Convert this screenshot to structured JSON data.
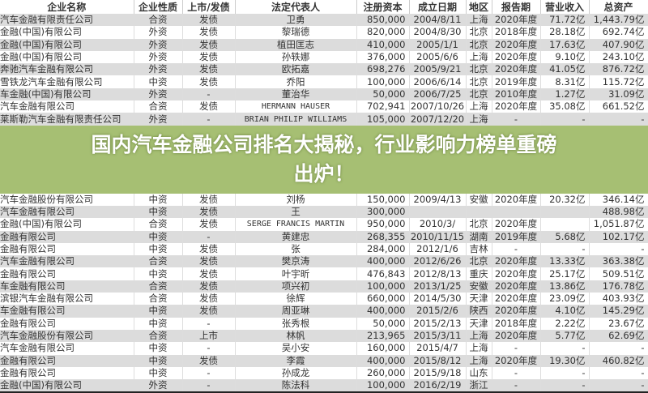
{
  "headers": [
    "企业名称",
    "企业性质",
    "上市/发债",
    "法定代表人",
    "注册资本",
    "成立日期",
    "地区",
    "报告期",
    "营业收入",
    "总资产"
  ],
  "rows": [
    [
      "汽车金融有限责任公司",
      "合资",
      "发债",
      "卫勇",
      "850,000",
      "2004/8/11",
      "上海",
      "2020年度",
      "71.72亿",
      "1,443.79亿"
    ],
    [
      "金融(中国)有限公司",
      "外资",
      "发债",
      "黎瑞德",
      "820,000",
      "2004/8/30",
      "北京",
      "2018年度",
      "28.18亿",
      "692.74亿"
    ],
    [
      "金融(中国)有限公司",
      "外资",
      "发债",
      "植田匡志",
      "410,000",
      "2005/1/1",
      "北京",
      "2020年度",
      "17.63亿",
      "407.90亿"
    ],
    [
      "金融(中国)有限公司",
      "外资",
      "发债",
      "孙轶娜",
      "376,000",
      "2005/6/6",
      "上海",
      "2020年度",
      "9.10亿",
      "243.10亿"
    ],
    [
      "奔驰汽车金融有限公司",
      "外资",
      "发债",
      "欧拓嘉",
      "698,276",
      "2005/9/21",
      "北京",
      "2020年度",
      "41.05亿",
      "876.72亿"
    ],
    [
      "雪铁龙汽车金融有限公司",
      "中资",
      "发债",
      "乔阳",
      "100,000",
      "2006/6/14",
      "北京",
      "2019年度",
      "8.31亿",
      "115.72亿"
    ],
    [
      "车金融(中国)有限公司",
      "外资",
      "-",
      "董治华",
      "50,000",
      "2006/7/25",
      "北京",
      "2010年度",
      "1.27亿",
      "31.09亿"
    ],
    [
      "汽车金融有限公司",
      "合资",
      "发债",
      "HERMANN HAUSER",
      "702,941",
      "2007/10/26",
      "上海",
      "2020年度",
      "35.08亿",
      "661.52亿"
    ],
    [
      "莱斯勒汽车金融有限责任公司",
      "外资",
      "-",
      "BRIAN PHILIP WILLIAMS",
      "105,000",
      "2007/12/20",
      "上海",
      "-",
      "-",
      "-"
    ],
    [
      "汽车金融股份有限公司",
      "中资",
      "发债",
      "刘杨",
      "150,000",
      "2009/4/13",
      "安徽",
      "2020年度",
      "20.32亿",
      "346.14亿"
    ],
    [
      "汽车金融有限公司",
      "中资",
      "发债",
      "王",
      "300,000",
      "",
      "",
      "",
      "",
      "488.98亿"
    ],
    [
      "金融(中国)有限公司",
      "合资",
      "发债",
      "SERGE FRANCIS MARTIN",
      "950,000",
      "2010/3/",
      "北京",
      "2020年度",
      "",
      "1,051.87亿"
    ],
    [
      "金融有限公司",
      "中资",
      "-",
      "黄建忠",
      "268,355",
      "2010/11/15",
      "湖南",
      "2019年度",
      "5.68亿",
      "102.17亿"
    ],
    [
      "金融有限公司",
      "中资",
      "发债",
      "张",
      "284,000",
      "2012/1/6",
      "吉林",
      "-",
      "-",
      "-"
    ],
    [
      "汽车金融有限公司",
      "合资",
      "发债",
      "樊京涛",
      "400,000",
      "2012/6/26",
      "北京",
      "2020年度",
      "13.33亿",
      "363.38亿"
    ],
    [
      "金融有限公司",
      "中资",
      "发债",
      "叶宇昕",
      "476,843",
      "2012/8/13",
      "重庆",
      "2020年度",
      "25.17亿",
      "509.51亿"
    ],
    [
      "车金融有限公司",
      "合资",
      "发债",
      "项兴初",
      "100,000",
      "2013/1/25",
      "安徽",
      "2020年度",
      "13.86亿",
      "176.78亿"
    ],
    [
      "滨银汽车金融有限公司",
      "合资",
      "发债",
      "徐辉",
      "660,000",
      "2014/5/30",
      "天津",
      "2020年度",
      "23.09亿",
      "403.93亿"
    ],
    [
      "车金融有限公司",
      "中资",
      "发债",
      "周亚琳",
      "400,000",
      "2015/2/6",
      "陕西",
      "2020年度",
      "4.10亿",
      "145.29亿"
    ],
    [
      "金融有限公司",
      "中资",
      "-",
      "张秀根",
      "50,000",
      "2015/2/13",
      "天津",
      "2018年度",
      "2.22亿",
      "23.67亿"
    ],
    [
      "汽车金融股份有限公司",
      "合资",
      "上市",
      "林帆",
      "213,965",
      "2015/3/11",
      "上海",
      "2020年度",
      "5.77亿",
      "62.69亿"
    ],
    [
      "汽车金融有限公司",
      "中资",
      "-",
      "吴小安",
      "160,000",
      "2015/4/7",
      "上海",
      "-",
      "-",
      "-"
    ],
    [
      "金融有限公司",
      "中资",
      "发债",
      "李霞",
      "400,000",
      "2015/8/12",
      "上海",
      "2020年度",
      "19.30亿",
      "460.82亿"
    ],
    [
      "金融有限公司",
      "中资",
      "-",
      "孙成龙",
      "260,000",
      "2015/9/18",
      "山东",
      "-",
      "-",
      "-"
    ],
    [
      "金融(中国)有限公司",
      "外资",
      "-",
      "陈法科",
      "100,000",
      "2016/2/19",
      "浙江",
      "-",
      "-",
      "-"
    ]
  ],
  "overlay": {
    "line1": "国内汽车金融公司排名大揭秘，行业影响力榜单重磅",
    "line2": "出炉！",
    "band_color": "#96b45a"
  }
}
